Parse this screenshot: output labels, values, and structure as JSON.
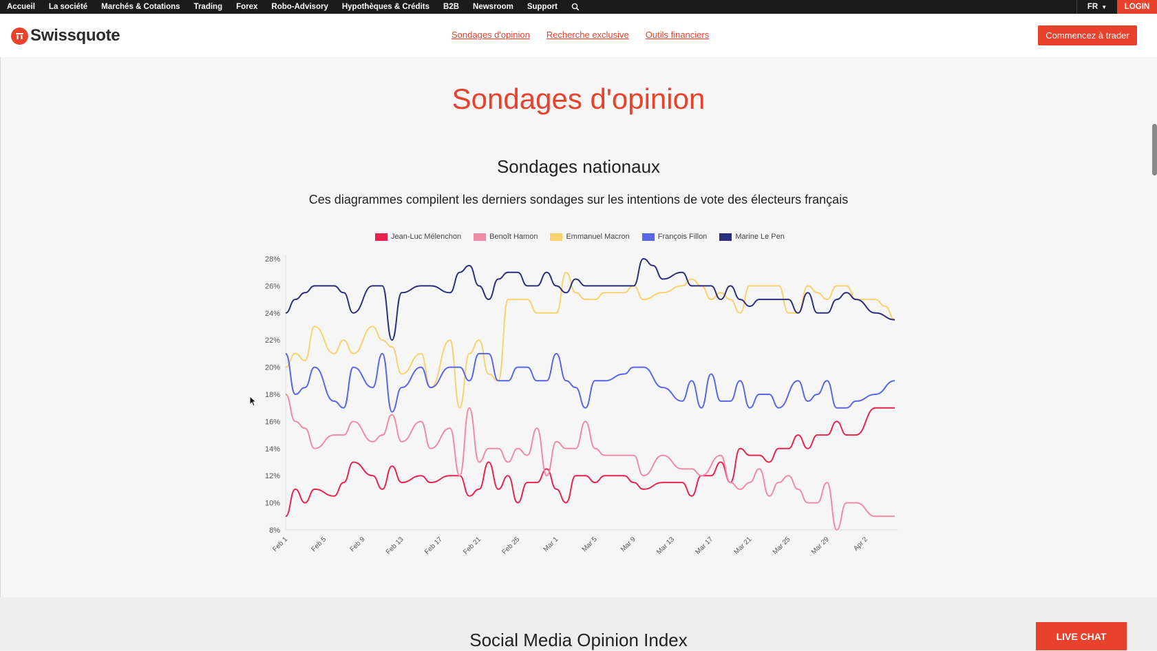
{
  "topbar": {
    "nav": [
      "Accueil",
      "La société",
      "Marchés & Cotations",
      "Trading",
      "Forex",
      "Robo-Advisory",
      "Hypothèques & Crédits",
      "B2B",
      "Newsroom",
      "Support"
    ],
    "search_icon": "search-icon",
    "lang": "FR",
    "login": "LOGIN"
  },
  "header": {
    "brand": "Swissquote",
    "links": [
      "Sondages d'opinion",
      "Recherche exclusive",
      "Outils financiers"
    ],
    "cta": "Commencez à trader"
  },
  "main": {
    "title": "Sondages d'opinion",
    "section_title": "Sondages nationaux",
    "section_desc": "Ces diagrammes compilent les derniers sondages sur les intentions de vote des électeurs français"
  },
  "bottom": {
    "title": "Social Media Opinion Index",
    "live_chat": "LIVE CHAT"
  },
  "chart_data": {
    "type": "line",
    "y_tick_labels": [
      "8%",
      "10%",
      "12%",
      "14%",
      "16%",
      "18%",
      "20%",
      "22%",
      "24%",
      "26%",
      "28%"
    ],
    "ylim": [
      8,
      28
    ],
    "x_tick_labels": [
      "Feb 1",
      "Feb 5",
      "Feb 9",
      "Feb 13",
      "Feb 17",
      "Feb 21",
      "Feb 25",
      "Mar 1",
      "Mar 5",
      "Mar 9",
      "Mar 13",
      "Mar 17",
      "Mar 21",
      "Mar 25",
      "Mar 29",
      "Apr 2"
    ],
    "x_range_days": [
      0,
      63
    ],
    "legend_position": "top",
    "grid": false,
    "series": [
      {
        "name": "Jean-Luc Mélenchon",
        "color": "#e8234e",
        "points": [
          [
            0,
            9
          ],
          [
            1,
            11
          ],
          [
            2,
            10
          ],
          [
            3,
            11
          ],
          [
            5,
            10.5
          ],
          [
            6,
            11.5
          ],
          [
            7,
            13
          ],
          [
            9,
            12
          ],
          [
            10,
            11
          ],
          [
            11,
            12.7
          ],
          [
            12,
            11.5
          ],
          [
            14,
            12
          ],
          [
            15,
            11.5
          ],
          [
            17,
            12
          ],
          [
            18,
            12
          ],
          [
            19,
            10.5
          ],
          [
            20,
            11
          ],
          [
            21,
            13
          ],
          [
            22,
            11
          ],
          [
            23,
            12
          ],
          [
            24,
            10
          ],
          [
            25,
            11.5
          ],
          [
            26,
            11.5
          ],
          [
            27,
            12.5
          ],
          [
            28,
            11
          ],
          [
            29,
            10
          ],
          [
            30,
            12
          ],
          [
            31,
            12
          ],
          [
            32,
            11.5
          ],
          [
            33,
            12
          ],
          [
            35,
            12
          ],
          [
            36,
            11.5
          ],
          [
            37,
            11
          ],
          [
            39,
            11.5
          ],
          [
            41,
            11.5
          ],
          [
            42,
            10.5
          ],
          [
            43,
            12
          ],
          [
            44,
            12
          ],
          [
            45,
            13
          ],
          [
            46,
            11.5
          ],
          [
            47,
            14
          ],
          [
            48,
            13.5
          ],
          [
            49,
            13.5
          ],
          [
            50,
            13
          ],
          [
            51,
            14
          ],
          [
            52,
            14
          ],
          [
            53,
            15
          ],
          [
            54,
            14
          ],
          [
            55,
            15
          ],
          [
            56,
            15
          ],
          [
            57,
            16
          ],
          [
            58,
            15
          ],
          [
            59,
            15
          ],
          [
            61,
            17
          ],
          [
            62,
            17
          ],
          [
            63,
            17
          ]
        ]
      },
      {
        "name": "Benoît Hamon",
        "color": "#f28aa5",
        "points": [
          [
            0,
            18
          ],
          [
            1,
            16
          ],
          [
            2,
            15.5
          ],
          [
            3,
            14
          ],
          [
            5,
            15
          ],
          [
            6,
            15
          ],
          [
            7,
            16
          ],
          [
            9,
            14.5
          ],
          [
            10,
            15
          ],
          [
            11,
            16.5
          ],
          [
            12,
            14.5
          ],
          [
            14,
            16
          ],
          [
            15,
            14
          ],
          [
            17,
            15.5
          ],
          [
            18,
            12
          ],
          [
            19,
            17
          ],
          [
            20,
            13
          ],
          [
            21,
            14
          ],
          [
            22,
            14
          ],
          [
            23,
            13
          ],
          [
            24,
            14
          ],
          [
            25,
            13.5
          ],
          [
            26,
            15.5
          ],
          [
            27,
            12
          ],
          [
            28,
            14.5
          ],
          [
            29,
            14
          ],
          [
            30,
            14
          ],
          [
            31,
            16
          ],
          [
            32,
            14
          ],
          [
            33,
            13.5
          ],
          [
            36,
            13.5
          ],
          [
            37,
            12
          ],
          [
            39,
            13.5
          ],
          [
            41,
            12.5
          ],
          [
            42,
            12.5
          ],
          [
            43,
            12
          ],
          [
            45,
            13.5
          ],
          [
            46,
            11.5
          ],
          [
            47,
            11
          ],
          [
            48,
            11.5
          ],
          [
            49,
            12.5
          ],
          [
            50,
            10.5
          ],
          [
            51,
            11.5
          ],
          [
            52,
            12
          ],
          [
            53,
            11
          ],
          [
            54,
            10
          ],
          [
            55,
            10
          ],
          [
            56,
            11.5
          ],
          [
            57,
            8
          ],
          [
            58,
            10
          ],
          [
            59,
            10
          ],
          [
            61,
            9
          ],
          [
            63,
            9
          ]
        ]
      },
      {
        "name": "Emmanuel Macron",
        "color": "#f9d26e",
        "points": [
          [
            0,
            20
          ],
          [
            1,
            21
          ],
          [
            2,
            20.5
          ],
          [
            3,
            23
          ],
          [
            5,
            21
          ],
          [
            6,
            22
          ],
          [
            7,
            21
          ],
          [
            9,
            23
          ],
          [
            10,
            22
          ],
          [
            11,
            21.5
          ],
          [
            12,
            19.5
          ],
          [
            14,
            21
          ],
          [
            15,
            18.5
          ],
          [
            17,
            22
          ],
          [
            18,
            17
          ],
          [
            19,
            21
          ],
          [
            20,
            22
          ],
          [
            21,
            19.5
          ],
          [
            22,
            19
          ],
          [
            23,
            25
          ],
          [
            24,
            25
          ],
          [
            25,
            25
          ],
          [
            26,
            24
          ],
          [
            28,
            24
          ],
          [
            29,
            27
          ],
          [
            30,
            25.5
          ],
          [
            31,
            25
          ],
          [
            32,
            25
          ],
          [
            33,
            25.5
          ],
          [
            35,
            25.5
          ],
          [
            36,
            26
          ],
          [
            37,
            25
          ],
          [
            39,
            25.5
          ],
          [
            41,
            26
          ],
          [
            42,
            26.5
          ],
          [
            43,
            26
          ],
          [
            44,
            25
          ],
          [
            45,
            25.5
          ],
          [
            46,
            25
          ],
          [
            47,
            24
          ],
          [
            48,
            26
          ],
          [
            50,
            26
          ],
          [
            51,
            26
          ],
          [
            52,
            24
          ],
          [
            53,
            24
          ],
          [
            54,
            26
          ],
          [
            55,
            25.5
          ],
          [
            56,
            25
          ],
          [
            57,
            26
          ],
          [
            58,
            26
          ],
          [
            59,
            25
          ],
          [
            61,
            25
          ],
          [
            62,
            24.5
          ],
          [
            63,
            23.5
          ]
        ]
      },
      {
        "name": "François Fillon",
        "color": "#5a66e8",
        "points": [
          [
            0,
            21
          ],
          [
            1,
            18
          ],
          [
            2,
            18.5
          ],
          [
            3,
            20
          ],
          [
            5,
            17.5
          ],
          [
            6,
            17
          ],
          [
            7,
            20
          ],
          [
            9,
            18.5
          ],
          [
            10,
            21
          ],
          [
            11,
            16.7
          ],
          [
            12,
            18.5
          ],
          [
            14,
            20
          ],
          [
            15,
            18.5
          ],
          [
            17,
            20
          ],
          [
            18,
            20
          ],
          [
            19,
            19
          ],
          [
            20,
            21
          ],
          [
            21,
            21
          ],
          [
            22,
            19
          ],
          [
            23,
            19
          ],
          [
            24,
            20
          ],
          [
            25,
            20
          ],
          [
            26,
            19
          ],
          [
            27,
            19
          ],
          [
            28,
            21
          ],
          [
            29,
            19
          ],
          [
            30,
            18.5
          ],
          [
            31,
            17
          ],
          [
            32,
            19
          ],
          [
            33,
            19
          ],
          [
            35,
            19.5
          ],
          [
            36,
            20
          ],
          [
            37,
            20
          ],
          [
            39,
            18.5
          ],
          [
            41,
            17.5
          ],
          [
            42,
            19
          ],
          [
            43,
            17
          ],
          [
            44,
            19.5
          ],
          [
            45,
            17.5
          ],
          [
            46,
            17.5
          ],
          [
            47,
            19
          ],
          [
            48,
            17
          ],
          [
            49,
            18
          ],
          [
            50,
            18
          ],
          [
            51,
            17
          ],
          [
            53,
            19
          ],
          [
            54,
            17.5
          ],
          [
            55,
            18
          ],
          [
            56,
            19
          ],
          [
            57,
            17
          ],
          [
            58,
            17
          ],
          [
            59,
            17.5
          ],
          [
            61,
            18
          ],
          [
            63,
            19
          ]
        ]
      },
      {
        "name": "Marine Le Pen",
        "color": "#2b2e7d",
        "points": [
          [
            0,
            24
          ],
          [
            1,
            25
          ],
          [
            2,
            25.5
          ],
          [
            3,
            26
          ],
          [
            5,
            26
          ],
          [
            6,
            25.5
          ],
          [
            7,
            24
          ],
          [
            9,
            26
          ],
          [
            10,
            26
          ],
          [
            11,
            22
          ],
          [
            12,
            25.5
          ],
          [
            14,
            26
          ],
          [
            15,
            26
          ],
          [
            17,
            25.5
          ],
          [
            18,
            27
          ],
          [
            19,
            27.5
          ],
          [
            20,
            26
          ],
          [
            21,
            25
          ],
          [
            22,
            26.5
          ],
          [
            23,
            27
          ],
          [
            24,
            27
          ],
          [
            25,
            26
          ],
          [
            26,
            26
          ],
          [
            27,
            27
          ],
          [
            28,
            26
          ],
          [
            29,
            25.5
          ],
          [
            30,
            26.5
          ],
          [
            31,
            26
          ],
          [
            35,
            26
          ],
          [
            36,
            26
          ],
          [
            37,
            28
          ],
          [
            38,
            27.5
          ],
          [
            39,
            26.5
          ],
          [
            41,
            27
          ],
          [
            42,
            26
          ],
          [
            44,
            26
          ],
          [
            45,
            25
          ],
          [
            46,
            26
          ],
          [
            47,
            25
          ],
          [
            48,
            24.5
          ],
          [
            49,
            25
          ],
          [
            51,
            25
          ],
          [
            52,
            25
          ],
          [
            53,
            24
          ],
          [
            54,
            25.5
          ],
          [
            55,
            24
          ],
          [
            56,
            24
          ],
          [
            57,
            25
          ],
          [
            58,
            25.5
          ],
          [
            59,
            25
          ],
          [
            61,
            24
          ],
          [
            63,
            23.5
          ]
        ]
      }
    ]
  }
}
